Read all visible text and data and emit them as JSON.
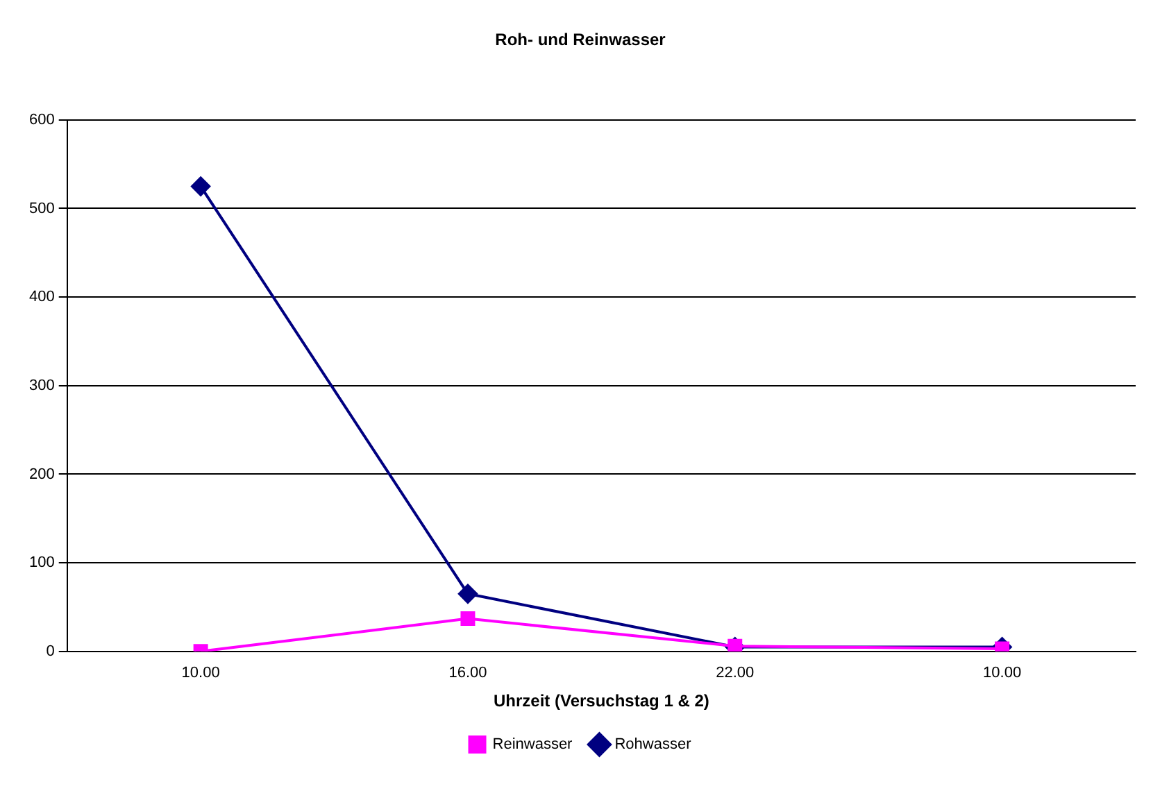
{
  "chart_data": {
    "type": "line",
    "title": "Roh- und Reinwasser",
    "xlabel": "Uhrzeit (Versuchstag 1 & 2)",
    "categories": [
      "10.00",
      "16.00",
      "22.00",
      "10.00"
    ],
    "series": [
      {
        "name": "Rohwasser",
        "color": "#000080",
        "marker": "diamond",
        "values": [
          525,
          65,
          5,
          5
        ]
      },
      {
        "name": "Reinwasser",
        "color": "#ff00ff",
        "marker": "square",
        "values": [
          0,
          37,
          6,
          3
        ]
      }
    ],
    "ylim": [
      0,
      600
    ],
    "yticks": [
      0,
      100,
      200,
      300,
      400,
      500,
      600
    ],
    "grid": "y",
    "legend": "bottom",
    "line_style": "solid"
  }
}
